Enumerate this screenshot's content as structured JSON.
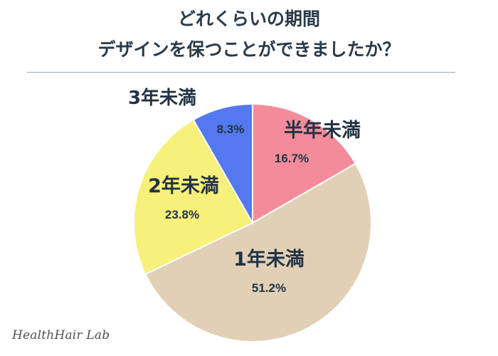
{
  "header": {
    "title_line1": "どれくらいの期間",
    "title_line2": "デザインを保つことができましたか？"
  },
  "brand": "HealthHair Lab",
  "chart_data": {
    "type": "pie",
    "title": "どれくらいの期間 デザインを保つことができましたか？",
    "slices": [
      {
        "label": "半年未満",
        "value": 16.7,
        "value_label": "16.7%",
        "color": "#f48b9a"
      },
      {
        "label": "1年未満",
        "value": 51.2,
        "value_label": "51.2%",
        "color": "#e1d0b6"
      },
      {
        "label": "2年未満",
        "value": 23.8,
        "value_label": "23.8%",
        "color": "#f7f07a"
      },
      {
        "label": "3年未満",
        "value": 8.3,
        "value_label": "8.3%",
        "color": "#5378f0"
      }
    ],
    "start": "top",
    "direction": "clockwise",
    "legend": "none",
    "label_color": "#223344"
  }
}
